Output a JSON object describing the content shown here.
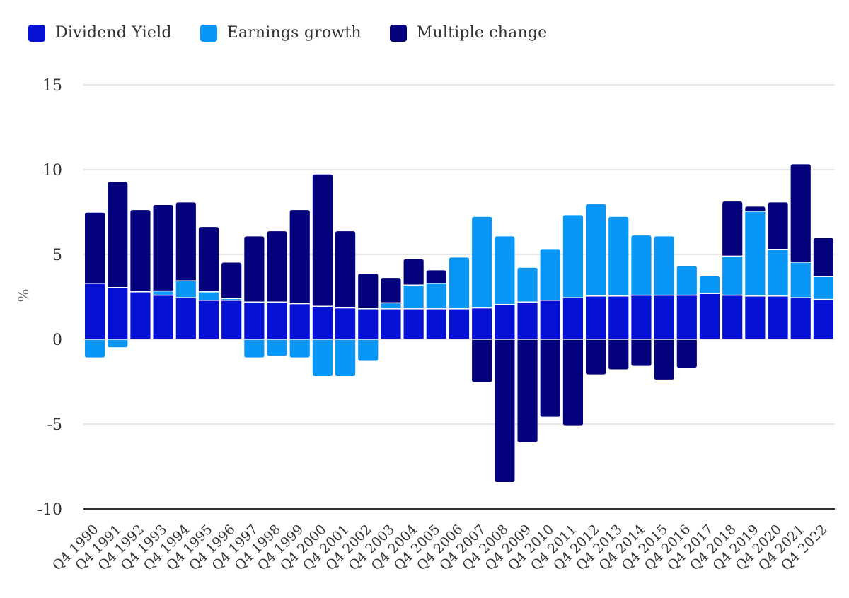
{
  "chart_data": {
    "type": "bar",
    "stacked": true,
    "title": "",
    "xlabel": "",
    "ylabel": "%",
    "ylim": [
      -10,
      15
    ],
    "yticks": [
      -10,
      -5,
      0,
      5,
      10,
      15
    ],
    "grid": true,
    "legend_position": "top-left",
    "categories": [
      "Q4 1990",
      "Q4 1991",
      "Q4 1992",
      "Q4 1993",
      "Q4 1994",
      "Q4 1995",
      "Q4 1996",
      "Q4 1997",
      "Q4 1998",
      "Q4 1999",
      "Q4 2000",
      "Q4 2001",
      "Q4 2002",
      "Q4 2003",
      "Q4 2004",
      "Q4 2005",
      "Q4 2006",
      "Q4 2007",
      "Q4 2008",
      "Q4 2009",
      "Q4 2010",
      "Q4 2011",
      "Q4 2012",
      "Q4 2013",
      "Q4 2014",
      "Q4 2015",
      "Q4 2016",
      "Q4 2017",
      "Q4 2018",
      "Q4 2019",
      "Q4 2020",
      "Q4 2021",
      "Q4 2022"
    ],
    "series": [
      {
        "name": "Dividend Yield",
        "color": "#0511d4",
        "values": [
          3.3,
          3.05,
          2.8,
          2.6,
          2.45,
          2.3,
          2.3,
          2.2,
          2.2,
          2.1,
          1.95,
          1.85,
          1.8,
          1.8,
          1.8,
          1.8,
          1.8,
          1.85,
          2.05,
          2.2,
          2.3,
          2.45,
          2.55,
          2.55,
          2.6,
          2.6,
          2.6,
          2.7,
          2.6,
          2.55,
          2.55,
          2.45,
          2.35
        ]
      },
      {
        "name": "Earnings growth",
        "color": "#0997f7",
        "values": [
          -1.1,
          -0.5,
          0.0,
          0.25,
          1.0,
          0.5,
          0.1,
          -1.1,
          -1.0,
          -1.1,
          -2.2,
          -2.2,
          -1.3,
          0.35,
          1.4,
          1.5,
          3.05,
          5.4,
          4.05,
          2.05,
          3.05,
          4.9,
          5.45,
          4.7,
          3.55,
          3.5,
          1.75,
          1.05,
          2.3,
          5.0,
          2.75,
          2.1,
          1.35
        ]
      },
      {
        "name": "Multiple change",
        "color": "#03027c",
        "values": [
          4.2,
          6.25,
          4.85,
          5.1,
          4.65,
          3.85,
          2.15,
          3.9,
          4.2,
          5.55,
          7.8,
          4.55,
          2.1,
          1.5,
          1.55,
          0.8,
          0.0,
          -2.55,
          -8.45,
          -6.1,
          -4.6,
          -5.1,
          -2.1,
          -1.8,
          -1.6,
          -2.4,
          -1.7,
          0.0,
          3.25,
          0.3,
          2.8,
          5.8,
          2.3
        ]
      }
    ]
  }
}
